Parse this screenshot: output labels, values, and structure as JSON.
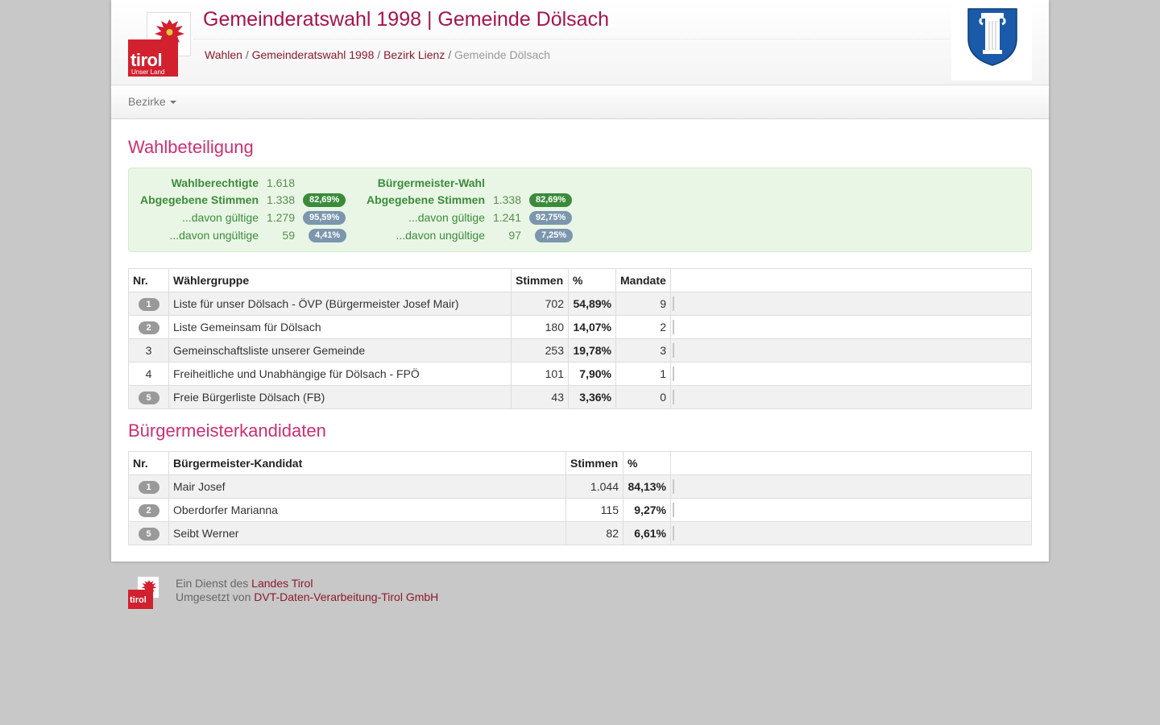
{
  "header": {
    "title": "Gemeinderatswahl 1998 | Gemeinde Dölsach",
    "logo_word": "tirol",
    "logo_sub": "Unser Land",
    "breadcrumb": {
      "items": [
        "Wahlen",
        "Gemeinderatswahl 1998",
        "Bezirk Lienz"
      ],
      "current": "Gemeinde Dölsach",
      "separator": "/"
    }
  },
  "nav": {
    "dropdown_label": "Bezirke"
  },
  "participation": {
    "heading": "Wahlbeteiligung",
    "left": {
      "rows": [
        {
          "label": "Wahlberechtigte",
          "value": "1.618",
          "badge": "",
          "badge_color": ""
        },
        {
          "label": "Abgegebene Stimmen",
          "value": "1.338",
          "badge": "82,69%",
          "badge_color": "green"
        },
        {
          "label": "...davon gültige",
          "value": "1.279",
          "badge": "95,59%",
          "badge_color": "blue"
        },
        {
          "label": "...davon ungültige",
          "value": "59",
          "badge": "4,41%",
          "badge_color": "blue"
        }
      ]
    },
    "right": {
      "heading": "Bürgermeister-Wahl",
      "rows": [
        {
          "label": "Abgegebene Stimmen",
          "value": "1.338",
          "badge": "82,69%",
          "badge_color": "green"
        },
        {
          "label": "...davon gültige",
          "value": "1.241",
          "badge": "92,75%",
          "badge_color": "blue"
        },
        {
          "label": "...davon ungültige",
          "value": "97",
          "badge": "7,25%",
          "badge_color": "blue"
        }
      ]
    }
  },
  "groups_table": {
    "headers": [
      "Nr.",
      "Wählergruppe",
      "Stimmen",
      "%",
      "Mandate"
    ],
    "rows": [
      {
        "nr": "1",
        "nr_badge": true,
        "name": "Liste für unser Dölsach - ÖVP (Bürgermeister Josef Mair)",
        "votes": "702",
        "pct": "54,89%",
        "mandates": "9"
      },
      {
        "nr": "2",
        "nr_badge": true,
        "name": "Liste Gemeinsam für Dölsach",
        "votes": "180",
        "pct": "14,07%",
        "mandates": "2"
      },
      {
        "nr": "3",
        "nr_badge": false,
        "name": "Gemeinschaftsliste unserer Gemeinde",
        "votes": "253",
        "pct": "19,78%",
        "mandates": "3"
      },
      {
        "nr": "4",
        "nr_badge": false,
        "name": "Freiheitliche und Unabhängige für Dölsach - FPÖ",
        "votes": "101",
        "pct": "7,90%",
        "mandates": "1"
      },
      {
        "nr": "5",
        "nr_badge": true,
        "name": "Freie Bürgerliste Dölsach (FB)",
        "votes": "43",
        "pct": "3,36%",
        "mandates": "0"
      }
    ]
  },
  "mayor": {
    "heading": "Bürgermeisterkandidaten",
    "headers": [
      "Nr.",
      "Bürgermeister-Kandidat",
      "Stimmen",
      "%"
    ],
    "rows": [
      {
        "nr": "1",
        "name": "Mair Josef",
        "votes": "1.044",
        "pct": "84,13%"
      },
      {
        "nr": "2",
        "name": "Oberdorfer Marianna",
        "votes": "115",
        "pct": "9,27%"
      },
      {
        "nr": "5",
        "name": "Seibt Werner",
        "votes": "82",
        "pct": "6,61%"
      }
    ]
  },
  "footer": {
    "line1_prefix": "Ein Dienst des",
    "line1_link": "Landes Tirol",
    "line2_prefix": "Umgesetzt von",
    "line2_link": "DVT-Daten-Verarbeitung-Tirol GmbH",
    "logo_word": "tirol"
  },
  "colors": {
    "title": "#a3154e",
    "link": "#8b1a2b",
    "heading": "#cc2f72",
    "logo_red": "#d2202f",
    "badge_green": "#3a8b3a",
    "badge_blue": "#7c96ae"
  }
}
